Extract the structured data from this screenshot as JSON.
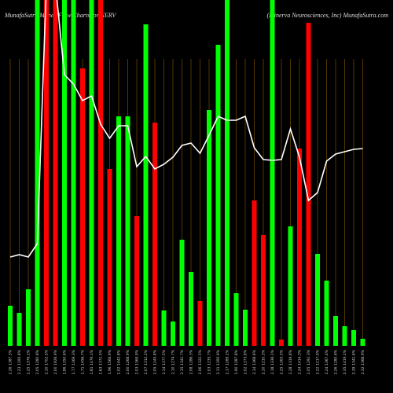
{
  "chart_data": {
    "type": "bar",
    "title": "MunafaSutra Money Flow Charts for NERV",
    "subtitle": "(Minerva Neurosciences, Inc) MunafaSutra.com",
    "categories": [
      "2.26 1387.3%",
      "2.23 1195.8%",
      "2.25 1376.1%",
      "2.05 1280.8%",
      "2.10 1702.5%",
      "2.00 1926.9%",
      "1.86 1350.6%",
      "1.77 1169.3%",
      "1.71 1456.7%",
      "1.81 1476.1%",
      "1.63 1371.5%",
      "1.96 1566.9%",
      "2.02 1442.8%",
      "2.00 1268.9%",
      "2.03 1369.9%",
      "2.07 1312.2%",
      "2.05 1245.8%",
      "2.14 1377.5%",
      "2.10 1274.7%",
      "2.15 1341.7%",
      "2.08 1286.3%",
      "2.06 1322.5%",
      "2.03 1235.7%",
      "2.11 1395.9%",
      "2.17 1289.1%",
      "1.90 1287.8%",
      "2.02 1373.8%",
      "2.14 1368.6%",
      "2.10 1210.3%",
      "2.18 1336.1%",
      "2.25 1263.5%",
      "2.28 1319.8%",
      "2.24 1414.3%",
      "2.05 1292.3%",
      "2.22 1217.9%",
      "2.24 1367.4%",
      "2.26 1280.6%",
      "2.35 1419.1%",
      "2.39 1341.6%",
      "2.32 1368.9%"
    ],
    "values": [
      51,
      42,
      72,
      440,
      440,
      440,
      440,
      440,
      353,
      440,
      440,
      225,
      292,
      292,
      165,
      409,
      284,
      45,
      31,
      135,
      94,
      57,
      300,
      383,
      440,
      67,
      46,
      185,
      141,
      440,
      8,
      152,
      251,
      411,
      117,
      83,
      38,
      25,
      20,
      9
    ],
    "colors": [
      "#00ff00",
      "#00ff00",
      "#00ff00",
      "#00ff00",
      "#ff0000",
      "#ff0000",
      "#00ff00",
      "#00ff00",
      "#ff0000",
      "#00ff00",
      "#ff0000",
      "#ff0000",
      "#00ff00",
      "#00ff00",
      "#ff0000",
      "#00ff00",
      "#ff0000",
      "#00ff00",
      "#00ff00",
      "#00ff00",
      "#00ff00",
      "#ff0000",
      "#00ff00",
      "#00ff00",
      "#00ff00",
      "#00ff00",
      "#00ff00",
      "#ff0000",
      "#ff0000",
      "#00ff00",
      "#ff0000",
      "#00ff00",
      "#ff0000",
      "#ff0000",
      "#00ff00",
      "#00ff00",
      "#00ff00",
      "#00ff00",
      "#00ff00",
      "#00ff00"
    ],
    "line_values": [
      113,
      116,
      113,
      130,
      460,
      460,
      345,
      333,
      312,
      318,
      282,
      264,
      280,
      280,
      228,
      241,
      225,
      231,
      240,
      255,
      258,
      245,
      268,
      292,
      287,
      287,
      292,
      252,
      237,
      236,
      237,
      276,
      240,
      185,
      195,
      235,
      244,
      247,
      250,
      251
    ],
    "line_color": "#ffffff",
    "grid_color": "#8a5a00",
    "ylim": [
      0,
      440
    ]
  }
}
